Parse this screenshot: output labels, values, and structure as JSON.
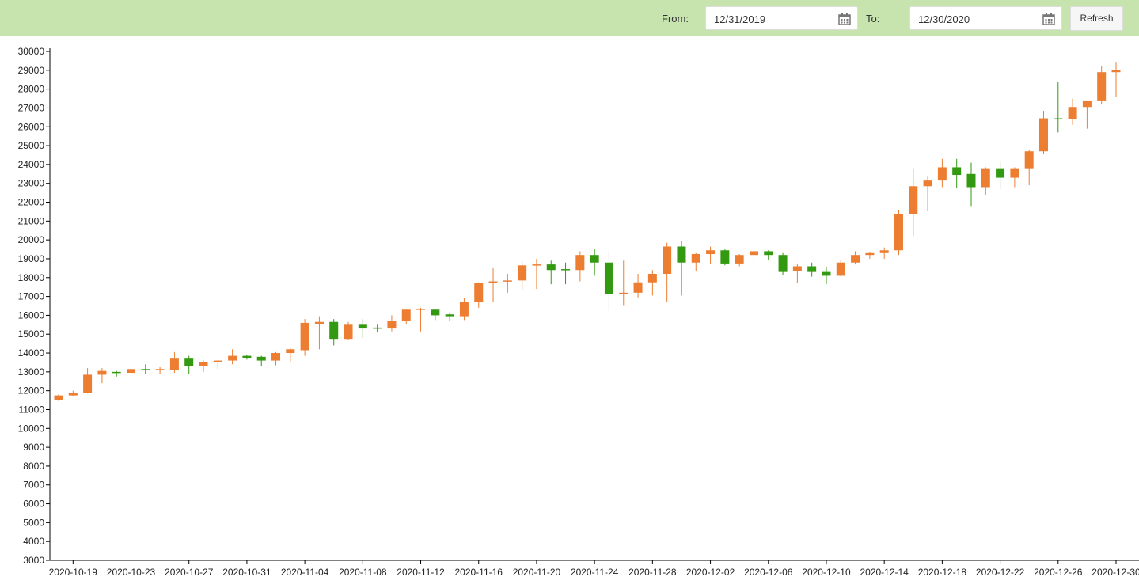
{
  "header": {
    "from_label": "From:",
    "from_date": "12/31/2019",
    "to_label": "To:",
    "to_date": "12/30/2020",
    "refresh": "Refresh"
  },
  "chart_data": {
    "type": "candlestick",
    "x": [
      "2020-10-18",
      "2020-10-19",
      "2020-10-20",
      "2020-10-21",
      "2020-10-22",
      "2020-10-23",
      "2020-10-24",
      "2020-10-25",
      "2020-10-26",
      "2020-10-27",
      "2020-10-28",
      "2020-10-29",
      "2020-10-30",
      "2020-10-31",
      "2020-11-01",
      "2020-11-02",
      "2020-11-03",
      "2020-11-04",
      "2020-11-05",
      "2020-11-06",
      "2020-11-07",
      "2020-11-08",
      "2020-11-09",
      "2020-11-10",
      "2020-11-11",
      "2020-11-12",
      "2020-11-13",
      "2020-11-14",
      "2020-11-15",
      "2020-11-16",
      "2020-11-17",
      "2020-11-18",
      "2020-11-19",
      "2020-11-20",
      "2020-11-21",
      "2020-11-22",
      "2020-11-23",
      "2020-11-24",
      "2020-11-25",
      "2020-11-26",
      "2020-11-27",
      "2020-11-28",
      "2020-11-29",
      "2020-11-30",
      "2020-12-01",
      "2020-12-02",
      "2020-12-03",
      "2020-12-04",
      "2020-12-05",
      "2020-12-06",
      "2020-12-07",
      "2020-12-08",
      "2020-12-09",
      "2020-12-10",
      "2020-12-11",
      "2020-12-12",
      "2020-12-13",
      "2020-12-14",
      "2020-12-15",
      "2020-12-16",
      "2020-12-17",
      "2020-12-18",
      "2020-12-19",
      "2020-12-20",
      "2020-12-21",
      "2020-12-22",
      "2020-12-23",
      "2020-12-24",
      "2020-12-25",
      "2020-12-26",
      "2020-12-27",
      "2020-12-28",
      "2020-12-29",
      "2020-12-30"
    ],
    "open": [
      11500,
      11750,
      11900,
      12850,
      13000,
      12950,
      13150,
      13100,
      13100,
      13700,
      13300,
      13500,
      13600,
      13850,
      13800,
      13600,
      14000,
      14150,
      15550,
      15650,
      14750,
      15500,
      15350,
      15300,
      15700,
      16300,
      16300,
      16050,
      15950,
      16700,
      17700,
      17800,
      17850,
      18650,
      18700,
      18450,
      18400,
      19200,
      18800,
      17150,
      17200,
      17750,
      18200,
      19650,
      18800,
      19250,
      19450,
      18750,
      19200,
      19400,
      19200,
      18350,
      18600,
      18300,
      18100,
      18800,
      19200,
      19300,
      19450,
      21350,
      22850,
      23150,
      23850,
      23500,
      22800,
      23800,
      23300,
      23800,
      24700,
      26450,
      26400,
      27050,
      27400,
      28900
    ],
    "high": [
      11800,
      12000,
      13200,
      13200,
      13050,
      13250,
      13400,
      13250,
      14050,
      13850,
      13600,
      13650,
      14200,
      13900,
      13850,
      14050,
      14250,
      15800,
      15950,
      15800,
      15650,
      15800,
      15500,
      16000,
      16350,
      16400,
      16350,
      16150,
      16900,
      17750,
      18500,
      18200,
      18850,
      19000,
      18900,
      18800,
      19400,
      19500,
      19450,
      18900,
      18200,
      18400,
      19850,
      19950,
      19300,
      19650,
      19500,
      19250,
      19500,
      19450,
      19300,
      18700,
      18800,
      18550,
      18950,
      19400,
      19350,
      19600,
      21600,
      23800,
      23350,
      24300,
      24300,
      24100,
      23850,
      24150,
      23850,
      24800,
      26850,
      28400,
      27500,
      27400,
      29200,
      29450
    ],
    "low": [
      11450,
      11700,
      11850,
      12400,
      12750,
      12800,
      12900,
      12900,
      12950,
      12900,
      13000,
      13150,
      13400,
      13650,
      13300,
      13350,
      13550,
      13850,
      14200,
      14400,
      14700,
      14800,
      15100,
      15150,
      15550,
      15150,
      15750,
      15700,
      15750,
      16400,
      16700,
      17200,
      17350,
      17400,
      17650,
      17650,
      17800,
      18100,
      16250,
      16500,
      16950,
      17050,
      16700,
      17050,
      18350,
      18750,
      18650,
      18600,
      18900,
      18950,
      18150,
      17700,
      18050,
      17650,
      18050,
      18700,
      19000,
      19000,
      19200,
      20200,
      21550,
      22800,
      22750,
      21800,
      22400,
      22700,
      22800,
      22900,
      24550,
      25700,
      26100,
      25900,
      27200,
      27600
    ],
    "close": [
      11750,
      11900,
      12850,
      13050,
      12950,
      13150,
      13100,
      13150,
      13700,
      13300,
      13500,
      13600,
      13850,
      13750,
      13600,
      14000,
      14200,
      15600,
      15650,
      14750,
      15500,
      15300,
      15300,
      15700,
      16300,
      16350,
      16000,
      15950,
      16700,
      17700,
      17800,
      17850,
      18650,
      18700,
      18400,
      18400,
      19200,
      18800,
      17150,
      17200,
      17750,
      18200,
      19650,
      18800,
      19250,
      19450,
      18750,
      19200,
      19400,
      19200,
      18300,
      18600,
      18300,
      18100,
      18800,
      19200,
      19300,
      19450,
      21350,
      22850,
      23150,
      23850,
      23450,
      22800,
      23800,
      23300,
      23800,
      24700,
      26450,
      26400,
      27050,
      27400,
      28900,
      29000
    ],
    "up_color": "#ed7d31",
    "down_color": "#339911",
    "xticks": [
      "2020-10-19",
      "2020-10-23",
      "2020-10-27",
      "2020-10-31",
      "2020-11-04",
      "2020-11-08",
      "2020-11-12",
      "2020-11-16",
      "2020-11-20",
      "2020-11-24",
      "2020-11-28",
      "2020-12-02",
      "2020-12-06",
      "2020-12-10",
      "2020-12-14",
      "2020-12-18",
      "2020-12-22",
      "2020-12-26",
      "2020-12-30"
    ],
    "ylim": [
      3000,
      30000
    ],
    "yticks": [
      3000,
      4000,
      5000,
      6000,
      7000,
      8000,
      9000,
      10000,
      11000,
      12000,
      13000,
      14000,
      15000,
      16000,
      17000,
      18000,
      19000,
      20000,
      21000,
      22000,
      23000,
      24000,
      25000,
      26000,
      27000,
      28000,
      29000,
      30000
    ]
  }
}
